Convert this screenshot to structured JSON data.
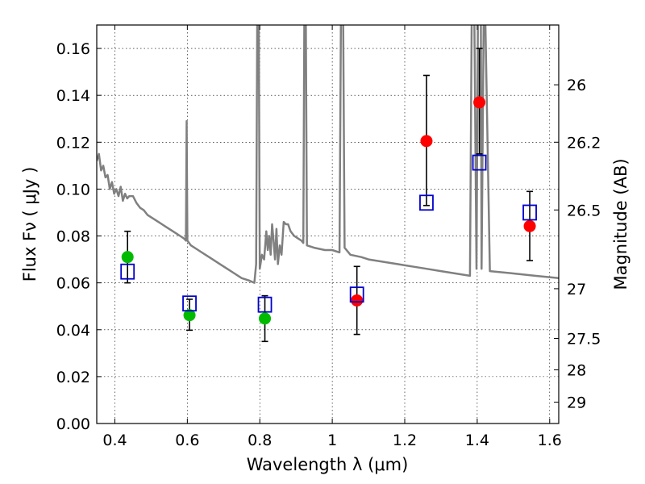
{
  "chart_data": {
    "type": "scatter",
    "xlabel": "Wavelength  λ (μm)",
    "ylabel": "Flux  Fν  ( μJy )",
    "ylabel_right": "Magnitude (AB)",
    "xlim": [
      0.35,
      1.625
    ],
    "ylim": [
      0.0,
      0.17
    ],
    "grid": true,
    "x_ticks": [
      {
        "v": 0.4,
        "label": "0.4"
      },
      {
        "v": 0.6,
        "label": "0.6"
      },
      {
        "v": 0.8,
        "label": "0.8"
      },
      {
        "v": 1.0,
        "label": "1"
      },
      {
        "v": 1.2,
        "label": "1.2"
      },
      {
        "v": 1.4,
        "label": "1.4"
      },
      {
        "v": 1.6,
        "label": "1.6"
      }
    ],
    "y_ticks": [
      {
        "v": 0.0,
        "label": "0.00"
      },
      {
        "v": 0.02,
        "label": "0.02"
      },
      {
        "v": 0.04,
        "label": "0.04"
      },
      {
        "v": 0.06,
        "label": "0.06"
      },
      {
        "v": 0.08,
        "label": "0.08"
      },
      {
        "v": 0.1,
        "label": "0.10"
      },
      {
        "v": 0.12,
        "label": "0.12"
      },
      {
        "v": 0.14,
        "label": "0.14"
      },
      {
        "v": 0.16,
        "label": "0.16"
      }
    ],
    "right_ticks": [
      {
        "flux": 0.1445,
        "label": "26"
      },
      {
        "flux": 0.12,
        "label": "26.2"
      },
      {
        "flux": 0.0911,
        "label": "26.5"
      },
      {
        "flux": 0.0575,
        "label": "27"
      },
      {
        "flux": 0.0363,
        "label": "27.5"
      },
      {
        "flux": 0.0229,
        "label": "28"
      },
      {
        "flux": 0.0091,
        "label": "29"
      }
    ],
    "colors": {
      "spectrum": "#808080",
      "optical": "#00bb00",
      "infrared": "#ff0000",
      "model": "#0000cc",
      "errorbar": "#000000"
    },
    "series": [
      {
        "marker": "circle",
        "color": "#00bb00",
        "points": [
          {
            "x": 0.435,
            "y": 0.071,
            "err_lo": 0.06,
            "err_hi": 0.082
          },
          {
            "x": 0.606,
            "y": 0.0462,
            "err_lo": 0.0398,
            "err_hi": 0.053
          },
          {
            "x": 0.814,
            "y": 0.0448,
            "err_lo": 0.035,
            "err_hi": 0.0545
          }
        ]
      },
      {
        "marker": "circle",
        "color": "#ff0000",
        "points": [
          {
            "x": 1.068,
            "y": 0.0525,
            "err_lo": 0.038,
            "err_hi": 0.067
          },
          {
            "x": 1.26,
            "y": 0.1205,
            "err_lo": 0.093,
            "err_hi": 0.1485
          },
          {
            "x": 1.406,
            "y": 0.137,
            "err_lo": 0.115,
            "err_hi": 0.16
          },
          {
            "x": 1.545,
            "y": 0.0842,
            "err_lo": 0.0695,
            "err_hi": 0.099
          }
        ]
      },
      {
        "marker": "open-square",
        "color": "#0000cc",
        "points": [
          {
            "x": 0.435,
            "y": 0.0648
          },
          {
            "x": 0.606,
            "y": 0.0512
          },
          {
            "x": 0.814,
            "y": 0.0507
          },
          {
            "x": 1.068,
            "y": 0.055
          },
          {
            "x": 1.26,
            "y": 0.0942
          },
          {
            "x": 1.406,
            "y": 0.1113
          },
          {
            "x": 1.545,
            "y": 0.09
          }
        ]
      }
    ],
    "spectrum": [
      [
        0.35,
        0.112
      ],
      [
        0.356,
        0.115
      ],
      [
        0.362,
        0.108
      ],
      [
        0.368,
        0.11
      ],
      [
        0.374,
        0.105
      ],
      [
        0.38,
        0.106
      ],
      [
        0.386,
        0.1
      ],
      [
        0.392,
        0.103
      ],
      [
        0.398,
        0.098
      ],
      [
        0.404,
        0.1
      ],
      [
        0.41,
        0.097
      ],
      [
        0.416,
        0.101
      ],
      [
        0.422,
        0.095
      ],
      [
        0.428,
        0.098
      ],
      [
        0.434,
        0.096
      ],
      [
        0.44,
        0.097
      ],
      [
        0.45,
        0.097
      ],
      [
        0.46,
        0.094
      ],
      [
        0.47,
        0.092
      ],
      [
        0.48,
        0.091
      ],
      [
        0.49,
        0.089
      ],
      [
        0.5,
        0.088
      ],
      [
        0.51,
        0.087
      ],
      [
        0.52,
        0.086
      ],
      [
        0.53,
        0.085
      ],
      [
        0.54,
        0.084
      ],
      [
        0.55,
        0.083
      ],
      [
        0.56,
        0.082
      ],
      [
        0.57,
        0.081
      ],
      [
        0.58,
        0.08
      ],
      [
        0.59,
        0.079
      ],
      [
        0.596,
        0.078
      ],
      [
        0.598,
        0.129
      ],
      [
        0.6,
        0.078
      ],
      [
        0.61,
        0.076
      ],
      [
        0.63,
        0.074
      ],
      [
        0.65,
        0.072
      ],
      [
        0.67,
        0.07
      ],
      [
        0.69,
        0.068
      ],
      [
        0.71,
        0.066
      ],
      [
        0.73,
        0.064
      ],
      [
        0.75,
        0.062
      ],
      [
        0.77,
        0.061
      ],
      [
        0.785,
        0.06
      ],
      [
        0.79,
        0.068
      ],
      [
        0.793,
        0.175
      ],
      [
        0.797,
        0.175
      ],
      [
        0.8,
        0.066
      ],
      [
        0.806,
        0.072
      ],
      [
        0.812,
        0.07
      ],
      [
        0.818,
        0.082
      ],
      [
        0.822,
        0.074
      ],
      [
        0.826,
        0.08
      ],
      [
        0.83,
        0.072
      ],
      [
        0.834,
        0.085
      ],
      [
        0.838,
        0.078
      ],
      [
        0.842,
        0.07
      ],
      [
        0.846,
        0.083
      ],
      [
        0.85,
        0.068
      ],
      [
        0.855,
        0.076
      ],
      [
        0.86,
        0.072
      ],
      [
        0.866,
        0.086
      ],
      [
        0.872,
        0.085
      ],
      [
        0.878,
        0.085
      ],
      [
        0.885,
        0.082
      ],
      [
        0.895,
        0.08
      ],
      [
        0.905,
        0.079
      ],
      [
        0.915,
        0.078
      ],
      [
        0.92,
        0.077
      ],
      [
        0.923,
        0.175
      ],
      [
        0.927,
        0.175
      ],
      [
        0.93,
        0.076
      ],
      [
        0.95,
        0.075
      ],
      [
        0.98,
        0.074
      ],
      [
        1.0,
        0.074
      ],
      [
        1.02,
        0.073
      ],
      [
        1.024,
        0.175
      ],
      [
        1.03,
        0.175
      ],
      [
        1.034,
        0.075
      ],
      [
        1.05,
        0.072
      ],
      [
        1.08,
        0.071
      ],
      [
        1.1,
        0.07
      ],
      [
        1.14,
        0.069
      ],
      [
        1.18,
        0.068
      ],
      [
        1.22,
        0.067
      ],
      [
        1.26,
        0.066
      ],
      [
        1.3,
        0.065
      ],
      [
        1.34,
        0.064
      ],
      [
        1.38,
        0.063
      ],
      [
        1.385,
        0.175
      ],
      [
        1.392,
        0.175
      ],
      [
        1.398,
        0.066
      ],
      [
        1.402,
        0.175
      ],
      [
        1.41,
        0.175
      ],
      [
        1.412,
        0.066
      ],
      [
        1.418,
        0.175
      ],
      [
        1.422,
        0.175
      ],
      [
        1.435,
        0.065
      ],
      [
        1.5,
        0.064
      ],
      [
        1.56,
        0.063
      ],
      [
        1.625,
        0.062
      ]
    ]
  }
}
